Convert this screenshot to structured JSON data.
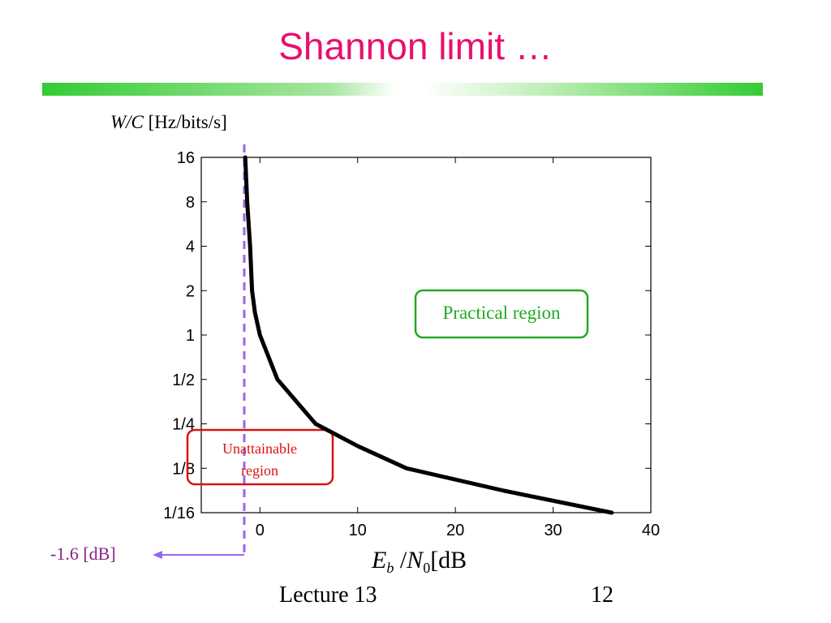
{
  "slide": {
    "title": "Shannon limit …",
    "footer_left": "Lecture 13",
    "footer_right": "12"
  },
  "colors": {
    "title": "#e8106e",
    "bar": "#33cc33",
    "limit_line": "#9966ee",
    "practical_box": "#22aa22",
    "unattainable_box": "#dd1111",
    "limit_text": "#882288"
  },
  "chart_data": {
    "type": "line",
    "y_unit_italic": "W/C",
    "y_unit_rest": " [Hz/bits/s]",
    "xlabel_main": "Eb/N0",
    "xlabel_unit": "[dB",
    "xlim": [
      -6,
      40
    ],
    "ylim_log2": [
      -4,
      4
    ],
    "y_scale": "log2",
    "grid": false,
    "x_ticks": [
      0,
      10,
      20,
      30,
      40
    ],
    "x_tick_labels": [
      "0",
      "10",
      "20",
      "30",
      "40"
    ],
    "y_ticks": [
      16,
      8,
      4,
      2,
      1,
      0.5,
      0.25,
      0.125,
      0.0625
    ],
    "y_tick_labels": [
      "16",
      "8",
      "4",
      "2",
      "1",
      "1/2",
      "1/4",
      "1/8",
      "1/16"
    ],
    "series": [
      {
        "x": [
          -1.5,
          -1.3,
          -1.0,
          -0.8,
          -0.5,
          0.0,
          1.8,
          5.7,
          10.0,
          15.0,
          25.0,
          36.0
        ],
        "y": [
          16,
          8,
          4,
          2,
          1.414,
          1,
          0.5,
          0.25,
          0.177,
          0.125,
          0.088,
          0.0625
        ]
      }
    ],
    "limit_value": -1.6,
    "limit_label": "-1.6 [dB]",
    "annotations": {
      "practical": "Practical region",
      "unattainable_line1": "Unattainable",
      "unattainable_line2": "region"
    }
  }
}
